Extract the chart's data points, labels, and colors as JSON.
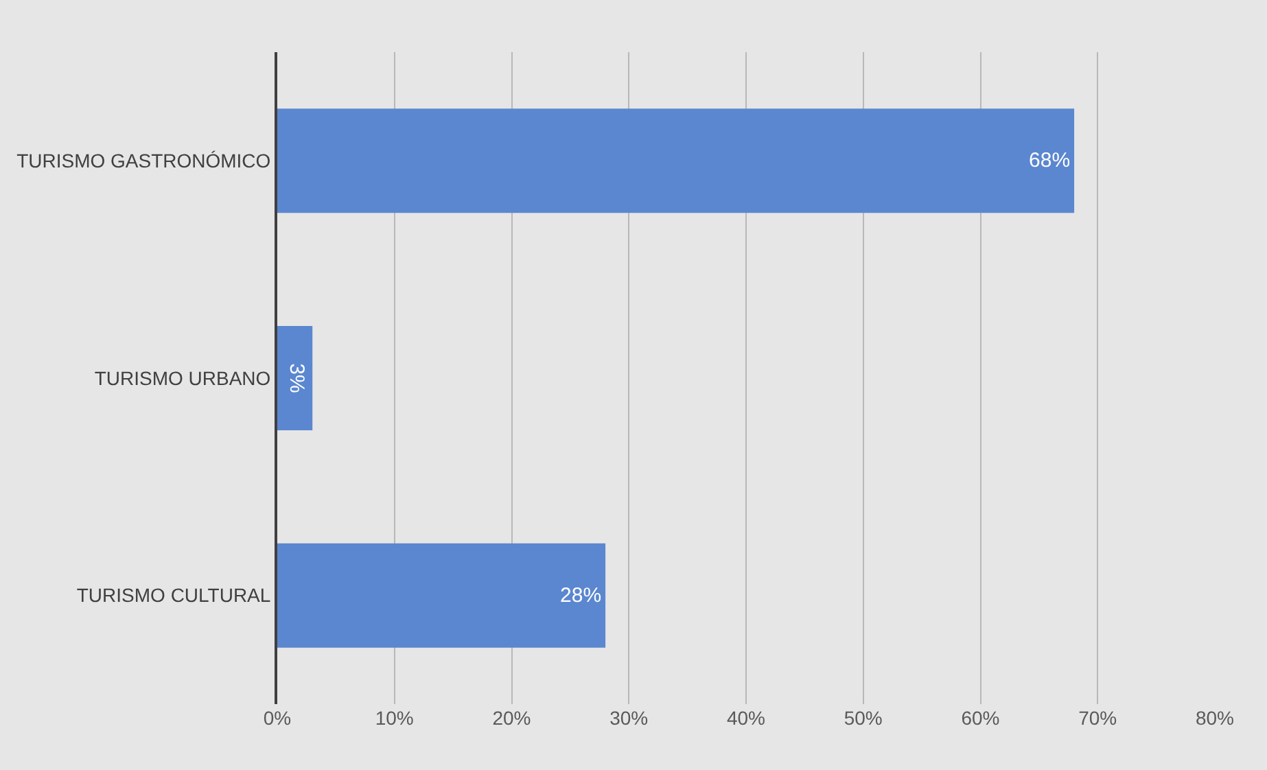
{
  "chart_data": {
    "type": "bar",
    "orientation": "horizontal",
    "categories": [
      "TURISMO GASTRONÓMICO",
      "TURISMO URBANO",
      "TURISMO CULTURAL"
    ],
    "values": [
      68,
      3,
      28
    ],
    "value_labels": [
      "68%",
      "3%",
      "28%"
    ],
    "color": "#5b87d0",
    "xlim": [
      0,
      80
    ],
    "xticks": [
      {
        "value": 0,
        "label": "0%"
      },
      {
        "value": 10,
        "label": "10%"
      },
      {
        "value": 20,
        "label": "20%"
      },
      {
        "value": 30,
        "label": "30%"
      },
      {
        "value": 40,
        "label": "40%"
      },
      {
        "value": 50,
        "label": "50%"
      },
      {
        "value": 60,
        "label": "60%"
      },
      {
        "value": 70,
        "label": "70%"
      },
      {
        "value": 80,
        "label": "80%"
      }
    ],
    "grid": "x",
    "legend": false
  }
}
